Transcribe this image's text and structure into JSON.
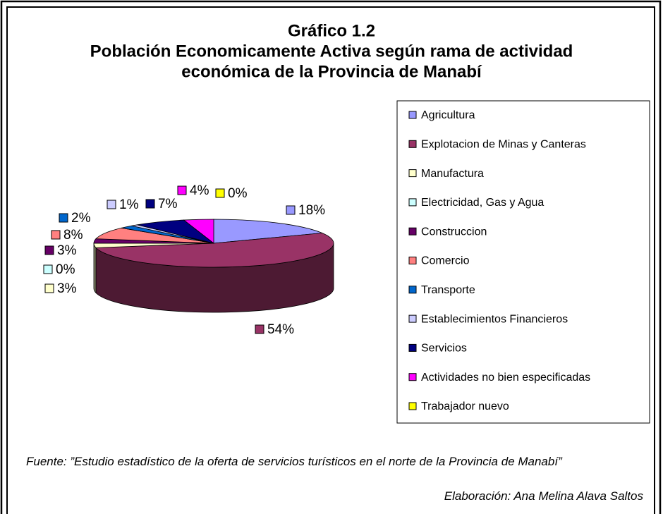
{
  "chart_data": {
    "type": "pie",
    "title": "Gráfico 1.2",
    "subtitle": [
      "Población Economicamente Activa según rama de actividad",
      "económica de la Provincia de Manabí"
    ],
    "categories": [
      "Agricultura",
      "Explotacion de Minas y Canteras",
      "Manufactura",
      "Electricidad, Gas y Agua",
      "Construccion",
      "Comercio",
      "Transporte",
      "Establecimientos Financieros",
      "Servicios",
      "Actividades no bien especificadas",
      "Trabajador nuevo"
    ],
    "values": [
      18,
      54,
      3,
      0,
      3,
      8,
      2,
      1,
      7,
      4,
      0
    ],
    "value_labels": [
      "18%",
      "54%",
      "3%",
      "0%",
      "3%",
      "8%",
      "2%",
      "1%",
      "7%",
      "4%",
      "0%"
    ],
    "colors": [
      "#9999FF",
      "#993366",
      "#FFFFCC",
      "#CCFFFF",
      "#660066",
      "#FF8080",
      "#0066CC",
      "#CCCCFF",
      "#000080",
      "#FF00FF",
      "#FFFF00"
    ],
    "legend": "right",
    "source": "Fuente: ”Estudio estadístico de la oferta de servicios turísticos en el norte de la Provincia de Manabí”",
    "credit": "Elaboración: Ana Melina Alava Saltos"
  }
}
